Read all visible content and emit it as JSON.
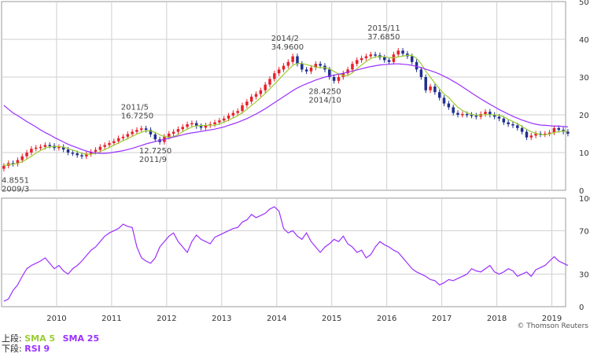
{
  "chart_data": {
    "type": "candlestick",
    "x_axis": {
      "tick_labels": [
        "2010",
        "2011",
        "2012",
        "2013",
        "2014",
        "2015",
        "2016",
        "2017",
        "2018",
        "2019"
      ],
      "range": [
        2009.0,
        2019.25
      ]
    },
    "upper_panel": {
      "y_range": [
        0,
        50
      ],
      "y_ticks": [
        0,
        10,
        20,
        30,
        40,
        50
      ],
      "grid": true,
      "colors": {
        "up": "#e8202a",
        "down": "#1f2f8f",
        "sma5": "#9acd32",
        "sma25": "#9b30ff"
      },
      "indicators": [
        "SMA 5",
        "SMA 25"
      ],
      "monthly_close": [
        6.5,
        7.2,
        7.0,
        8.0,
        9.0,
        10.0,
        11.0,
        11.3,
        11.5,
        12.0,
        11.8,
        11.2,
        11.5,
        10.8,
        10.0,
        9.8,
        9.3,
        9.0,
        9.6,
        10.2,
        10.7,
        11.5,
        12.0,
        12.5,
        13.0,
        13.8,
        14.2,
        14.9,
        15.5,
        16.0,
        16.4,
        16.0,
        14.8,
        13.5,
        12.8,
        14.2,
        15.0,
        15.5,
        16.2,
        16.8,
        17.5,
        17.8,
        17.0,
        16.6,
        17.2,
        17.5,
        18.0,
        18.5,
        19.0,
        19.8,
        20.5,
        21.0,
        22.5,
        23.5,
        24.8,
        25.5,
        26.5,
        28.0,
        29.5,
        31.0,
        32.0,
        33.0,
        34.0,
        35.5,
        33.5,
        32.0,
        31.5,
        32.5,
        33.5,
        33.0,
        32.0,
        30.0,
        29.0,
        30.0,
        31.0,
        32.0,
        33.5,
        34.5,
        35.0,
        35.5,
        36.0,
        35.8,
        35.2,
        34.5,
        34.0,
        36.0,
        37.0,
        36.2,
        35.5,
        34.0,
        32.0,
        30.0,
        26.5,
        27.5,
        26.0,
        24.5,
        23.0,
        22.0,
        20.5,
        20.0,
        20.2,
        20.0,
        19.8,
        19.5,
        20.2,
        20.8,
        20.0,
        19.5,
        19.0,
        18.0,
        17.5,
        17.2,
        16.5,
        15.5,
        14.0,
        14.5,
        15.0,
        14.8,
        15.0,
        15.3,
        16.5,
        16.0,
        15.5,
        15.0
      ],
      "sma25": [
        22.5,
        21.5,
        20.5,
        19.8,
        19.0,
        18.2,
        17.5,
        16.8,
        16.0,
        15.3,
        14.7,
        14.0,
        13.4,
        12.8,
        12.2,
        11.7,
        11.3,
        10.8,
        10.4,
        10.1,
        9.9,
        9.8,
        9.8,
        9.9,
        10.1,
        10.3,
        10.5,
        10.8,
        11.1,
        11.5,
        11.9,
        12.3,
        12.6,
        12.9,
        13.2,
        13.5,
        13.8,
        14.1,
        14.4,
        14.7,
        15.0,
        15.2,
        15.4,
        15.6,
        15.8,
        16.0,
        16.2,
        16.5,
        16.8,
        17.2,
        17.6,
        18.0,
        18.5,
        19.0,
        19.6,
        20.2,
        20.9,
        21.6,
        22.4,
        23.2,
        24.0,
        24.8,
        25.6,
        26.4,
        27.1,
        27.7,
        28.2,
        28.7,
        29.2,
        29.6,
        30.0,
        30.3,
        30.5,
        30.8,
        31.0,
        31.3,
        31.6,
        31.9,
        32.2,
        32.5,
        32.8,
        33.0,
        33.2,
        33.3,
        33.4,
        33.5,
        33.5,
        33.4,
        33.3,
        33.1,
        32.8,
        32.5,
        32.1,
        31.7,
        31.3,
        30.8,
        30.2,
        29.6,
        28.9,
        28.2,
        27.4,
        26.6,
        25.8,
        25.0,
        24.2,
        23.5,
        22.8,
        22.1,
        21.4,
        20.8,
        20.2,
        19.6,
        19.1,
        18.6,
        18.2,
        17.8,
        17.5,
        17.3,
        17.2,
        17.1,
        17.0,
        17.0,
        16.9,
        16.8
      ],
      "annotations": [
        {
          "text": [
            "4.8551",
            "2009/3"
          ],
          "date": 2009.2,
          "value": 4.8551,
          "placement": "below"
        },
        {
          "text": [
            "2011/5",
            "16.7250"
          ],
          "date": 2011.37,
          "value": 16.725,
          "placement": "above"
        },
        {
          "text": [
            "12.7250",
            "2011/9"
          ],
          "date": 2011.7,
          "value": 12.725,
          "placement": "below"
        },
        {
          "text": [
            "2014/2",
            "34.9600"
          ],
          "date": 2014.1,
          "value": 34.96,
          "placement": "above"
        },
        {
          "text": [
            "28.4250",
            "2014/10"
          ],
          "date": 2014.78,
          "value": 28.425,
          "placement": "below"
        },
        {
          "text": [
            "2015/11",
            "37.6850"
          ],
          "date": 2015.85,
          "value": 37.685,
          "placement": "above"
        }
      ]
    },
    "lower_panel": {
      "indicator": "RSI 9",
      "y_range": [
        0,
        100
      ],
      "y_ticks": [
        0,
        30,
        70,
        100
      ],
      "color": "#9b30ff",
      "rsi": [
        5,
        7,
        15,
        20,
        28,
        35,
        38,
        40,
        42,
        45,
        40,
        35,
        38,
        33,
        30,
        35,
        38,
        42,
        47,
        52,
        55,
        60,
        65,
        68,
        70,
        72,
        76,
        74,
        73,
        55,
        45,
        42,
        40,
        45,
        55,
        60,
        65,
        68,
        60,
        55,
        50,
        60,
        66,
        62,
        60,
        58,
        64,
        66,
        68,
        70,
        72,
        73,
        78,
        80,
        85,
        82,
        84,
        86,
        90,
        92,
        88,
        72,
        68,
        70,
        65,
        62,
        68,
        60,
        55,
        50,
        55,
        58,
        62,
        60,
        65,
        58,
        55,
        50,
        52,
        45,
        48,
        55,
        60,
        57,
        55,
        52,
        50,
        45,
        40,
        35,
        32,
        30,
        28,
        25,
        24,
        20,
        22,
        25,
        24,
        26,
        28,
        30,
        35,
        33,
        32,
        35,
        38,
        32,
        30,
        32,
        35,
        33,
        28,
        30,
        32,
        28,
        34,
        36,
        38,
        42,
        46,
        42,
        40,
        38
      ]
    },
    "legend": {
      "row1_label": "上段:",
      "row1_items": [
        {
          "name": "SMA 5",
          "color": "#9acd32"
        },
        {
          "name": "SMA 25",
          "color": "#9b30ff"
        }
      ],
      "row2_label": "下段:",
      "row2_items": [
        {
          "name": "RSI 9",
          "color": "#9b30ff"
        }
      ]
    },
    "credit": "© Thomson Reuters"
  }
}
